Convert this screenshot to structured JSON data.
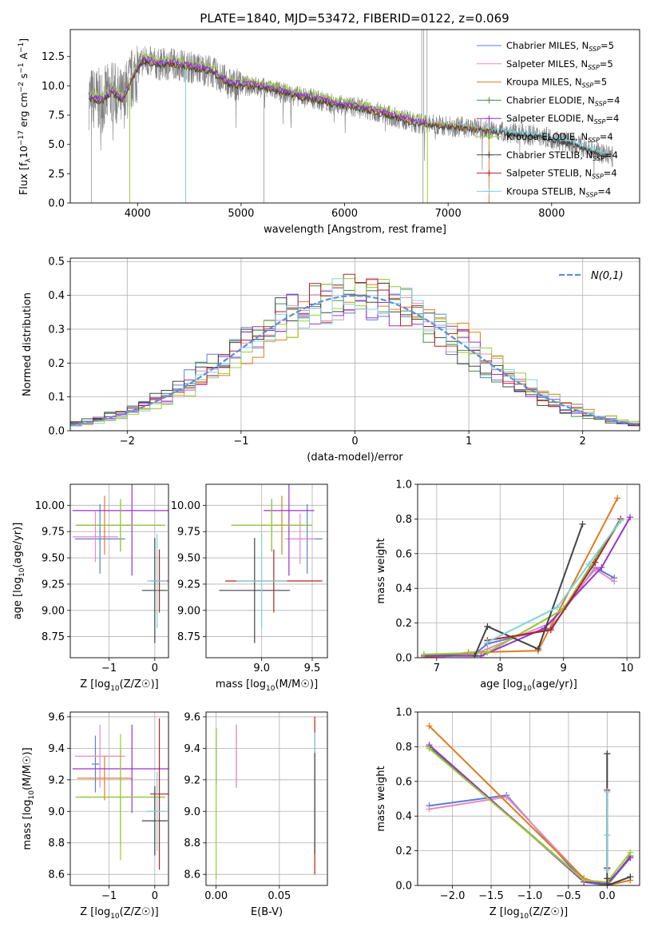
{
  "title": "PLATE=1840, MJD=53472, FIBERID=0122, z=0.069",
  "colors": {
    "chabrier_miles": "#5a7fd0",
    "salpeter_miles": "#e78ac3",
    "kroupa_miles": "#e07b1f",
    "chabrier_elodie": "#4c8a4c",
    "salpeter_elodie": "#9a32cd",
    "kroupa_elodie": "#9acd32",
    "chabrier_stelib": "#444444",
    "salpeter_stelib": "#b22222",
    "kroupa_stelib": "#7fd1dc",
    "data": "#808080",
    "normal": "#5b8fd9",
    "grid": "#b0b0b0"
  },
  "chart_data": [
    {
      "type": "line",
      "panel": "spectrum",
      "xlabel": "wavelength [Angstrom, rest frame]",
      "ylabel": "Flux [f_λ10^-17 erg cm^-2 s^-1 A^-1]",
      "ylabel_parts": {
        "a": "Flux [f",
        "b": "λ",
        "c": "10",
        "d": "−17",
        "e": " erg cm",
        "f": "−2",
        "g": " s",
        "h": "−1",
        "i": " A",
        "j": "−1",
        "k": "]"
      },
      "xlim": [
        3350,
        8850
      ],
      "ylim": [
        0,
        14.8
      ],
      "xticks": [
        4000,
        5000,
        6000,
        7000,
        8000
      ],
      "yticks": [
        0.0,
        2.5,
        5.0,
        7.5,
        10.0,
        12.5
      ],
      "grid": false,
      "legend_position": "top-right",
      "series": [
        {
          "name": "Chabrier MILES",
          "nssp": "5",
          "key": "chabrier_miles"
        },
        {
          "name": "Salpeter MILES",
          "nssp": "5",
          "key": "salpeter_miles"
        },
        {
          "name": "Kroupa MILES",
          "nssp": "5",
          "key": "kroupa_miles"
        },
        {
          "name": "Chabrier ELODIE",
          "nssp": "4",
          "key": "chabrier_elodie"
        },
        {
          "name": "Salpeter ELODIE",
          "nssp": "4",
          "key": "salpeter_elodie"
        },
        {
          "name": "Kroupa ELODIE",
          "nssp": "4",
          "key": "kroupa_elodie"
        },
        {
          "name": "Chabrier STELIB",
          "nssp": "4",
          "key": "chabrier_stelib"
        },
        {
          "name": "Salpeter STELIB",
          "nssp": "4",
          "key": "salpeter_stelib"
        },
        {
          "name": "Kroupa STELIB",
          "nssp": "4",
          "key": "kroupa_stelib"
        }
      ],
      "continuum": [
        [
          3530,
          9.0
        ],
        [
          3650,
          8.7
        ],
        [
          3760,
          9.5
        ],
        [
          3850,
          8.7
        ],
        [
          3950,
          10.6
        ],
        [
          4050,
          12.2
        ],
        [
          4200,
          11.8
        ],
        [
          4350,
          11.9
        ],
        [
          4500,
          11.6
        ],
        [
          4700,
          11.3
        ],
        [
          4900,
          10.1
        ],
        [
          5100,
          10.0
        ],
        [
          5300,
          9.7
        ],
        [
          5500,
          9.2
        ],
        [
          5700,
          8.9
        ],
        [
          5900,
          8.4
        ],
        [
          6100,
          8.2
        ],
        [
          6300,
          7.8
        ],
        [
          6500,
          7.3
        ],
        [
          6700,
          6.8
        ],
        [
          7000,
          6.6
        ],
        [
          7300,
          6.3
        ],
        [
          7600,
          6.0
        ],
        [
          7900,
          5.7
        ],
        [
          8200,
          5.1
        ],
        [
          8600,
          3.9
        ]
      ]
    },
    {
      "type": "line",
      "panel": "residuals",
      "xlabel": "(data-model)/error",
      "ylabel": "Normed distribution",
      "xlim": [
        -2.5,
        2.5
      ],
      "ylim": [
        0,
        0.51
      ],
      "xticks": [
        -2,
        -1,
        0,
        1,
        2
      ],
      "yticks": [
        0.0,
        0.1,
        0.2,
        0.3,
        0.4,
        0.5
      ],
      "grid": true,
      "legend": "N(0,1)",
      "legend_position": "top-right"
    },
    {
      "type": "scatter",
      "panel": "age-vs-Z",
      "xlabel": "Z [log10(Z/Z☉)]",
      "ylabel": "age  [log10(age/yr)]",
      "xlim": [
        -1.85,
        0.3
      ],
      "ylim": [
        8.55,
        10.2
      ],
      "xticks": [
        -1,
        0
      ],
      "yticks": [
        8.75,
        9.0,
        9.25,
        9.5,
        9.75,
        10.0
      ],
      "grid": true,
      "points": [
        {
          "key": "chabrier_miles",
          "x": -1.2,
          "y": 9.68,
          "xerr": 0.55,
          "yerr": 0.33
        },
        {
          "key": "salpeter_miles",
          "x": -1.3,
          "y": 9.7,
          "xerr": 0.5,
          "yerr": 0.24
        },
        {
          "key": "kroupa_miles",
          "x": -1.1,
          "y": 9.81,
          "xerr": 0.6,
          "yerr": 0.28
        },
        {
          "key": "chabrier_elodie",
          "x": -0.75,
          "y": 9.81,
          "xerr": 0.98,
          "yerr": 0.25
        },
        {
          "key": "salpeter_elodie",
          "x": -0.5,
          "y": 9.95,
          "xerr": 1.3,
          "yerr": 0.62
        },
        {
          "key": "kroupa_elodie",
          "x": -0.75,
          "y": 9.81,
          "xerr": 0.98,
          "yerr": 0.25
        },
        {
          "key": "chabrier_stelib",
          "x": 0.0,
          "y": 9.19,
          "xerr": 0.28,
          "yerr": 0.5
        },
        {
          "key": "salpeter_stelib",
          "x": 0.1,
          "y": 9.28,
          "xerr": 0.2,
          "yerr": 0.3
        },
        {
          "key": "kroupa_stelib",
          "x": 0.05,
          "y": 9.28,
          "xerr": 0.22,
          "yerr": 0.45
        }
      ]
    },
    {
      "type": "scatter",
      "panel": "age-vs-mass",
      "xlabel": "mass [log10(M/M☉)]",
      "ylabel": "",
      "xlim": [
        8.45,
        9.65
      ],
      "ylim": [
        8.55,
        10.2
      ],
      "xticks": [
        9.0,
        9.5
      ],
      "yticks": [
        8.75,
        9.0,
        9.25,
        9.5,
        9.75,
        10.0
      ],
      "grid": true,
      "points": [
        {
          "key": "chabrier_miles",
          "x": 9.45,
          "y": 9.68,
          "xerr": 0.15,
          "yerr": 0.33
        },
        {
          "key": "salpeter_miles",
          "x": 9.38,
          "y": 9.68,
          "xerr": 0.15,
          "yerr": 0.24
        },
        {
          "key": "kroupa_miles",
          "x": 9.2,
          "y": 9.81,
          "xerr": 0.2,
          "yerr": 0.28
        },
        {
          "key": "chabrier_elodie",
          "x": 9.1,
          "y": 9.81,
          "xerr": 0.4,
          "yerr": 0.25
        },
        {
          "key": "salpeter_elodie",
          "x": 9.27,
          "y": 9.95,
          "xerr": 0.25,
          "yerr": 0.62
        },
        {
          "key": "kroupa_elodie",
          "x": 9.1,
          "y": 9.81,
          "xerr": 0.4,
          "yerr": 0.25
        },
        {
          "key": "chabrier_stelib",
          "x": 8.93,
          "y": 9.19,
          "xerr": 0.35,
          "yerr": 0.5
        },
        {
          "key": "salpeter_stelib",
          "x": 9.12,
          "y": 9.28,
          "xerr": 0.48,
          "yerr": 0.3
        },
        {
          "key": "kroupa_stelib",
          "x": 9.0,
          "y": 9.28,
          "xerr": 0.25,
          "yerr": 0.45
        }
      ]
    },
    {
      "type": "line",
      "panel": "weight-vs-age",
      "xlabel": "age  [log10(age/yr)]",
      "ylabel": "mass weight",
      "xlim": [
        6.7,
        10.2
      ],
      "ylim": [
        0,
        1.0
      ],
      "xticks": [
        7,
        8,
        9,
        10
      ],
      "yticks": [
        0.0,
        0.2,
        0.4,
        0.6,
        0.8,
        1.0
      ],
      "grid": true,
      "series": [
        {
          "key": "chabrier_miles",
          "x": [
            6.8,
            7.6,
            7.8,
            8.8,
            9.5,
            9.8
          ],
          "y": [
            0.0,
            0.02,
            0.08,
            0.17,
            0.52,
            0.46
          ]
        },
        {
          "key": "salpeter_miles",
          "x": [
            6.8,
            7.6,
            7.8,
            8.8,
            9.5,
            9.8
          ],
          "y": [
            0.0,
            0.02,
            0.05,
            0.2,
            0.51,
            0.44
          ]
        },
        {
          "key": "kroupa_miles",
          "x": [
            6.8,
            7.5,
            8.6,
            9.85
          ],
          "y": [
            0.0,
            0.03,
            0.04,
            0.92
          ]
        },
        {
          "key": "chabrier_elodie",
          "x": [
            6.8,
            7.8,
            9.0,
            9.9
          ],
          "y": [
            0.01,
            0.03,
            0.28,
            0.8
          ]
        },
        {
          "key": "salpeter_elodie",
          "x": [
            6.8,
            7.7,
            8.7,
            9.6,
            10.05
          ],
          "y": [
            0.01,
            0.01,
            0.17,
            0.52,
            0.81
          ]
        },
        {
          "key": "kroupa_elodie",
          "x": [
            6.8,
            7.8,
            9.0,
            9.9
          ],
          "y": [
            0.02,
            0.03,
            0.28,
            0.79
          ]
        },
        {
          "key": "chabrier_stelib",
          "x": [
            7.6,
            7.8,
            8.6,
            9.3
          ],
          "y": [
            0.01,
            0.18,
            0.05,
            0.77
          ]
        },
        {
          "key": "salpeter_stelib",
          "x": [
            7.8,
            8.8,
            9.5,
            9.9
          ],
          "y": [
            0.1,
            0.16,
            0.55,
            0.8
          ]
        },
        {
          "key": "kroupa_stelib",
          "x": [
            7.8,
            8.9,
            9.4,
            9.9
          ],
          "y": [
            0.09,
            0.29,
            0.54,
            0.79
          ]
        }
      ]
    },
    {
      "type": "scatter",
      "panel": "mass-vs-Z",
      "xlabel": "Z [log10(Z/Z☉)]",
      "ylabel": "mass [log10(M/M☉)]",
      "xlim": [
        -1.85,
        0.3
      ],
      "ylim": [
        8.53,
        9.63
      ],
      "xticks": [
        -1,
        0
      ],
      "yticks": [
        8.6,
        8.8,
        9.0,
        9.2,
        9.4,
        9.6
      ],
      "grid": true,
      "points": [
        {
          "key": "chabrier_miles",
          "x": -1.3,
          "y": 9.3,
          "xerr": 0.08,
          "yerr": 0.18
        },
        {
          "key": "salpeter_miles",
          "x": -1.2,
          "y": 9.35,
          "xerr": 0.55,
          "yerr": 0.2
        },
        {
          "key": "kroupa_miles",
          "x": -1.1,
          "y": 9.21,
          "xerr": 0.6,
          "yerr": 0.14
        },
        {
          "key": "chabrier_elodie",
          "x": -0.75,
          "y": 9.09,
          "xerr": 0.98,
          "yerr": 0.3
        },
        {
          "key": "salpeter_elodie",
          "x": -0.5,
          "y": 9.27,
          "xerr": 1.3,
          "yerr": 0.28
        },
        {
          "key": "kroupa_elodie",
          "x": -0.75,
          "y": 9.09,
          "xerr": 0.98,
          "yerr": 0.4
        },
        {
          "key": "chabrier_stelib",
          "x": 0.0,
          "y": 8.94,
          "xerr": 0.28,
          "yerr": 0.22
        },
        {
          "key": "salpeter_stelib",
          "x": 0.1,
          "y": 9.11,
          "xerr": 0.2,
          "yerr": 0.48
        },
        {
          "key": "kroupa_stelib",
          "x": 0.05,
          "y": 9.0,
          "xerr": 0.22,
          "yerr": 0.25
        }
      ]
    },
    {
      "type": "scatter",
      "panel": "mass-vs-EBV",
      "xlabel": "E(B-V)",
      "ylabel": "",
      "xlim": [
        -0.008,
        0.088
      ],
      "ylim": [
        8.53,
        9.63
      ],
      "xticks": [
        0.0,
        0.05
      ],
      "xtick_labels": [
        "0.00",
        "0.05"
      ],
      "yticks": [
        8.6,
        8.8,
        9.0,
        9.2,
        9.4,
        9.6
      ],
      "grid": true,
      "points": [
        {
          "key": "chabrier_miles",
          "x": 0.0,
          "y": 9.35,
          "yerr": 0.18
        },
        {
          "key": "kroupa_elodie",
          "x": 0.0,
          "y": 9.05,
          "yerr": 0.48
        },
        {
          "key": "kroupa_miles",
          "x": 0.016,
          "y": 9.35,
          "yerr": 0.2
        },
        {
          "key": "salpeter_miles",
          "x": 0.016,
          "y": 9.35,
          "yerr": 0.2
        },
        {
          "key": "salpeter_stelib",
          "x": 0.078,
          "y": 9.1,
          "xerr": 0.0,
          "yerr": 0.5
        },
        {
          "key": "kroupa_stelib",
          "x": 0.078,
          "y": 9.15,
          "yerr": 0.35
        },
        {
          "key": "chabrier_stelib",
          "x": 0.078,
          "y": 9.05,
          "yerr": 0.32
        }
      ]
    },
    {
      "type": "line",
      "panel": "weight-vs-Z",
      "xlabel": "Z [log10(Z/Z☉)]",
      "ylabel": "mass weight",
      "xlim": [
        -2.45,
        0.42
      ],
      "ylim": [
        0,
        1.0
      ],
      "xticks": [
        -2.0,
        -1.5,
        -1.0,
        -0.5,
        0.0
      ],
      "yticks": [
        0.0,
        0.2,
        0.4,
        0.6,
        0.8,
        1.0
      ],
      "grid": true,
      "series": [
        {
          "key": "chabrier_miles",
          "x": [
            -2.3,
            -1.3,
            -0.3,
            0.0,
            0.3
          ],
          "y": [
            0.46,
            0.52,
            0.02,
            0.0,
            0.16
          ]
        },
        {
          "key": "salpeter_miles",
          "x": [
            -2.3,
            -1.3,
            -0.3,
            0.0,
            0.3
          ],
          "y": [
            0.44,
            0.51,
            0.04,
            0.0,
            0.17
          ]
        },
        {
          "key": "kroupa_miles",
          "x": [
            -2.3,
            -0.3,
            0.0,
            0.3
          ],
          "y": [
            0.92,
            0.04,
            0.0,
            0.03
          ]
        },
        {
          "key": "chabrier_elodie",
          "x": [
            -2.3,
            -0.3,
            0.0,
            0.3
          ],
          "y": [
            0.8,
            0.03,
            0.0,
            0.17
          ]
        },
        {
          "key": "salpeter_elodie",
          "x": [
            -2.3,
            -0.3,
            0.0,
            0.3
          ],
          "y": [
            0.81,
            0.02,
            0.01,
            0.16
          ]
        },
        {
          "key": "kroupa_elodie",
          "x": [
            -2.3,
            -0.3,
            0.0,
            0.3
          ],
          "y": [
            0.79,
            0.03,
            0.02,
            0.19
          ]
        },
        {
          "key": "chabrier_stelib",
          "x": [
            0.0,
            0.0,
            0.0,
            0.0,
            0.3
          ],
          "y": [
            0.76,
            0.1,
            0.04,
            0.0,
            0.05
          ]
        },
        {
          "key": "salpeter_stelib",
          "x": [
            0.0,
            0.0
          ],
          "y": [
            0.55,
            0.1
          ]
        },
        {
          "key": "kroupa_stelib",
          "x": [
            0.0,
            0.0,
            0.0
          ],
          "y": [
            0.54,
            0.29,
            0.09
          ]
        }
      ]
    }
  ]
}
